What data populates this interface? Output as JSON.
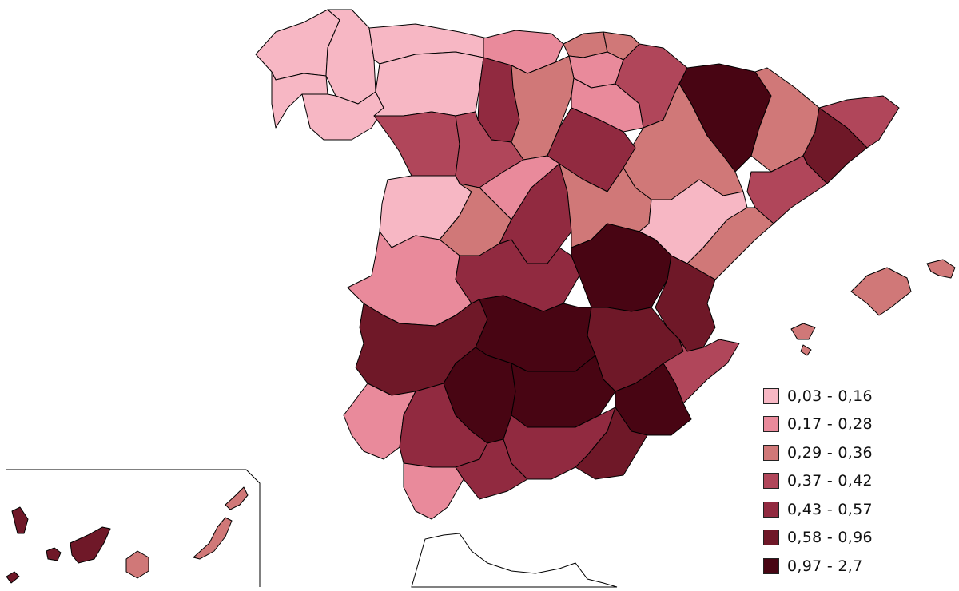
{
  "legend": {
    "classes": [
      {
        "label": "0,03 - 0,16",
        "color": "#f7b7c4"
      },
      {
        "label": "0,17 - 0,28",
        "color": "#e98a9b"
      },
      {
        "label": "0,29 - 0,36",
        "color": "#d07878"
      },
      {
        "label": "0,37 - 0,42",
        "color": "#b0465a"
      },
      {
        "label": "0,43 - 0,57",
        "color": "#912a40"
      },
      {
        "label": "0,58 - 0,96",
        "color": "#6f1828"
      },
      {
        "label": "0,97 - 2,7",
        "color": "#480513"
      }
    ]
  }
}
